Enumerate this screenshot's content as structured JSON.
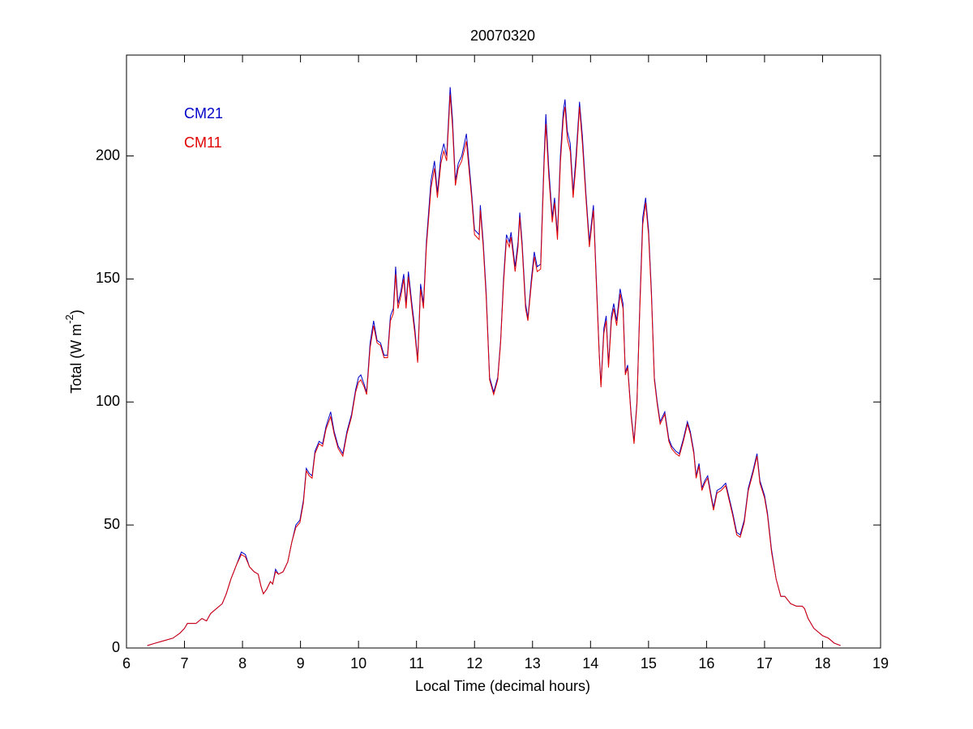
{
  "chart_data": {
    "type": "line",
    "title": "20070320",
    "xlabel": "Local Time (decimal hours)",
    "ylabel": {
      "main": "Total (W m",
      "sup": "-2",
      "close": ")"
    },
    "xlim": [
      6,
      19
    ],
    "xticks": [
      6,
      7,
      8,
      9,
      10,
      11,
      12,
      13,
      14,
      15,
      16,
      17,
      18,
      19
    ],
    "ylim": [
      0,
      241
    ],
    "yticks": [
      0,
      50,
      100,
      150,
      200
    ],
    "grid": false,
    "legend": "upper left",
    "x": [
      6.36,
      6.5,
      6.65,
      6.8,
      6.92,
      7.0,
      7.05,
      7.2,
      7.3,
      7.38,
      7.45,
      7.55,
      7.65,
      7.72,
      7.8,
      7.9,
      7.98,
      8.05,
      8.12,
      8.2,
      8.27,
      8.32,
      8.36,
      8.42,
      8.48,
      8.52,
      8.57,
      8.62,
      8.7,
      8.78,
      8.85,
      8.92,
      8.99,
      9.05,
      9.1,
      9.15,
      9.2,
      9.25,
      9.32,
      9.38,
      9.44,
      9.52,
      9.58,
      9.65,
      9.73,
      9.8,
      9.88,
      9.95,
      10.0,
      10.04,
      10.1,
      10.14,
      10.2,
      10.26,
      10.32,
      10.38,
      10.44,
      10.5,
      10.55,
      10.6,
      10.64,
      10.68,
      10.73,
      10.78,
      10.82,
      10.86,
      10.92,
      10.97,
      11.02,
      11.07,
      11.12,
      11.17,
      11.25,
      11.31,
      11.36,
      11.42,
      11.47,
      11.52,
      11.58,
      11.62,
      11.67,
      11.72,
      11.78,
      11.86,
      11.95,
      12.0,
      12.08,
      12.1,
      12.15,
      12.2,
      12.26,
      12.33,
      12.4,
      12.45,
      12.5,
      12.55,
      12.6,
      12.63,
      12.7,
      12.75,
      12.78,
      12.82,
      12.88,
      12.92,
      12.98,
      13.03,
      13.08,
      13.14,
      13.2,
      13.23,
      13.28,
      13.34,
      13.38,
      13.43,
      13.48,
      13.53,
      13.56,
      13.6,
      13.65,
      13.7,
      13.75,
      13.81,
      13.86,
      13.92,
      13.98,
      14.05,
      14.1,
      14.15,
      14.18,
      14.23,
      14.27,
      14.31,
      14.36,
      14.4,
      14.45,
      14.51,
      14.56,
      14.6,
      14.64,
      14.7,
      14.75,
      14.8,
      14.85,
      14.9,
      14.95,
      15.0,
      15.05,
      15.1,
      15.15,
      15.2,
      15.28,
      15.35,
      15.4,
      15.47,
      15.53,
      15.6,
      15.67,
      15.72,
      15.78,
      15.82,
      15.87,
      15.92,
      15.97,
      16.02,
      16.08,
      16.12,
      16.18,
      16.25,
      16.33,
      16.4,
      16.45,
      16.52,
      16.58,
      16.65,
      16.72,
      16.8,
      16.87,
      16.92,
      17.0,
      17.05,
      17.12,
      17.2,
      17.28,
      17.35,
      17.45,
      17.55,
      17.65,
      17.69,
      17.75,
      17.85,
      17.95,
      18.0,
      18.1,
      18.2,
      18.31
    ],
    "series": [
      {
        "name": "CM21",
        "color": "#0000c8",
        "values": [
          1,
          2,
          3,
          4,
          6,
          8,
          10,
          10,
          12,
          11,
          14,
          16,
          18,
          22,
          28,
          34,
          39,
          38,
          33,
          31,
          30,
          25,
          22,
          24,
          27,
          26,
          32,
          30,
          31,
          35,
          43,
          50,
          52,
          60,
          73,
          71,
          70,
          80,
          84,
          83,
          90,
          96,
          88,
          82,
          79,
          88,
          95,
          105,
          110,
          111,
          107,
          104,
          124,
          133,
          125,
          124,
          119,
          119,
          135,
          138,
          155,
          140,
          145,
          152,
          140,
          153,
          140,
          130,
          117,
          148,
          140,
          165,
          190,
          198,
          185,
          200,
          205,
          200,
          228,
          215,
          190,
          197,
          200,
          209,
          185,
          170,
          168,
          180,
          165,
          145,
          110,
          104,
          110,
          125,
          150,
          168,
          165,
          169,
          155,
          165,
          177,
          165,
          140,
          134,
          150,
          161,
          155,
          156,
          200,
          217,
          195,
          175,
          183,
          168,
          200,
          218,
          223,
          210,
          205,
          185,
          200,
          222,
          208,
          185,
          165,
          180,
          150,
          120,
          107,
          130,
          135,
          115,
          135,
          140,
          133,
          146,
          140,
          112,
          115,
          95,
          84,
          100,
          140,
          175,
          183,
          170,
          145,
          110,
          100,
          92,
          96,
          85,
          82,
          80,
          79,
          85,
          92,
          88,
          80,
          70,
          75,
          65,
          68,
          70,
          62,
          57,
          64,
          65,
          67,
          60,
          55,
          47,
          46,
          52,
          65,
          72,
          79,
          68,
          62,
          55,
          40,
          28,
          21,
          21,
          18,
          17,
          17,
          16,
          12,
          8,
          6,
          5,
          4,
          2,
          1
        ]
      },
      {
        "name": "CM11",
        "color": "#e00000",
        "values": [
          1,
          2,
          3,
          4,
          6,
          8,
          10,
          10,
          12,
          11,
          14,
          16,
          18,
          22,
          28,
          34,
          38,
          37,
          33,
          31,
          30,
          25,
          22,
          24,
          27,
          26,
          31,
          30,
          31,
          35,
          43,
          49,
          51,
          59,
          72,
          70,
          69,
          79,
          83,
          82,
          89,
          94,
          87,
          81,
          78,
          87,
          94,
          104,
          108,
          109,
          106,
          103,
          122,
          131,
          124,
          123,
          118,
          118,
          133,
          136,
          152,
          138,
          143,
          150,
          138,
          151,
          138,
          128,
          116,
          146,
          138,
          163,
          187,
          195,
          183,
          197,
          202,
          198,
          225,
          212,
          188,
          195,
          198,
          206,
          183,
          168,
          166,
          178,
          163,
          143,
          109,
          103,
          109,
          124,
          148,
          166,
          163,
          167,
          153,
          163,
          175,
          163,
          138,
          133,
          148,
          159,
          153,
          154,
          197,
          213,
          192,
          173,
          181,
          166,
          197,
          215,
          220,
          207,
          202,
          183,
          197,
          220,
          205,
          183,
          163,
          178,
          148,
          119,
          106,
          128,
          133,
          114,
          133,
          138,
          131,
          144,
          138,
          111,
          114,
          94,
          83,
          99,
          138,
          172,
          181,
          168,
          143,
          109,
          99,
          91,
          95,
          84,
          81,
          79,
          78,
          84,
          91,
          87,
          79,
          69,
          74,
          64,
          67,
          69,
          61,
          56,
          63,
          64,
          66,
          59,
          54,
          46,
          45,
          51,
          64,
          71,
          78,
          67,
          61,
          54,
          39,
          28,
          21,
          21,
          18,
          17,
          17,
          16,
          12,
          8,
          6,
          5,
          4,
          2,
          1
        ]
      }
    ]
  }
}
